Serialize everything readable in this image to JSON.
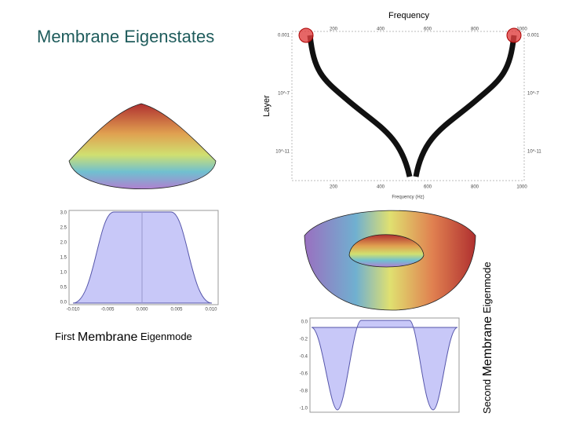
{
  "slide": {
    "title": "Membrane Eigenstates",
    "top_plot": {
      "header": "Frequency",
      "side_label": "Layer",
      "x_axis_label": "Frequency (Hz)",
      "x_ticks": [
        "200",
        "400",
        "600",
        "800",
        "1000"
      ],
      "y_ticks": [
        "0.001",
        "10^-7",
        "10^-11"
      ]
    },
    "first_plot": {
      "x_ticks": [
        "-0.010",
        "-0.005",
        "0.000",
        "0.005",
        "0.010"
      ],
      "y_ticks": [
        "3.0",
        "2.5",
        "2.0",
        "1.5",
        "1.0",
        "0.5",
        "0.0"
      ]
    },
    "second_plot": {
      "y_ticks": [
        "0.0",
        "-0.2",
        "-0.4",
        "-0.6",
        "-0.8",
        "-1.0"
      ]
    },
    "first_caption": [
      "First",
      "Membrane",
      "Eigenmode"
    ],
    "second_caption": [
      "Second",
      "Membrane",
      "Eigenmode"
    ]
  }
}
